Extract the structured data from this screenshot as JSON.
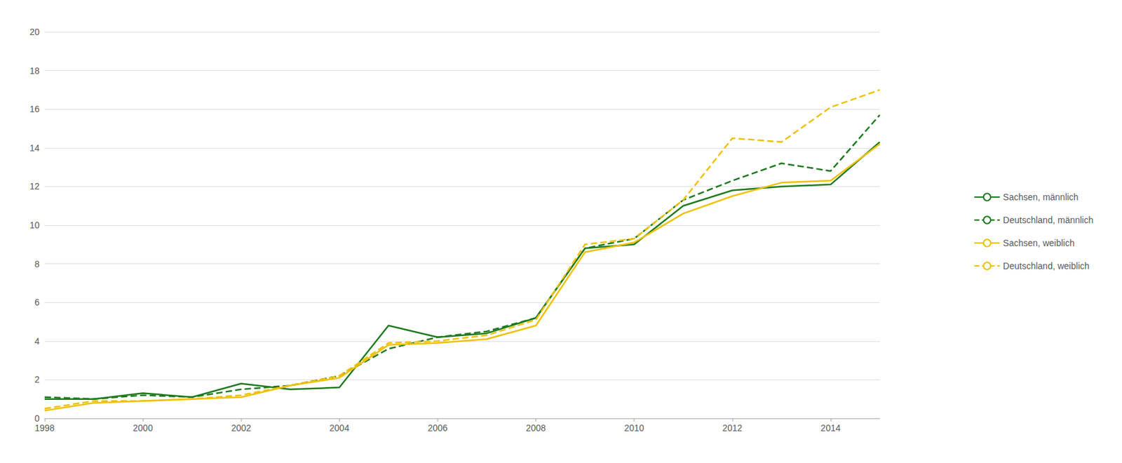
{
  "chart_data": {
    "type": "line",
    "x": [
      1998,
      1999,
      2000,
      2001,
      2002,
      2003,
      2004,
      2005,
      2006,
      2007,
      2008,
      2009,
      2010,
      2011,
      2012,
      2013,
      2014,
      2015
    ],
    "series": [
      {
        "name": "Sachsen, männlich",
        "color": "#1e7a1e",
        "line_style": "solid",
        "values": [
          1.0,
          1.0,
          1.3,
          1.1,
          1.8,
          1.5,
          1.6,
          4.8,
          4.2,
          4.4,
          5.2,
          8.8,
          9.0,
          11.0,
          11.8,
          12.0,
          12.1,
          14.3
        ]
      },
      {
        "name": "Deutschland, männlich",
        "color": "#1e7a1e",
        "line_style": "dashed",
        "values": [
          1.1,
          1.0,
          1.2,
          1.1,
          1.5,
          1.7,
          2.2,
          3.6,
          4.2,
          4.5,
          5.2,
          8.8,
          9.3,
          11.3,
          12.3,
          13.2,
          12.8,
          15.7
        ]
      },
      {
        "name": "Sachsen, weiblich",
        "color": "#f0c000",
        "line_style": "solid",
        "values": [
          0.4,
          0.8,
          0.9,
          1.0,
          1.1,
          1.7,
          2.1,
          3.8,
          3.9,
          4.1,
          4.8,
          8.6,
          9.1,
          10.6,
          11.5,
          12.2,
          12.3,
          14.2
        ]
      },
      {
        "name": "Deutschland, weiblich",
        "color": "#f0c000",
        "line_style": "dashed",
        "values": [
          0.5,
          0.9,
          0.9,
          1.0,
          1.2,
          1.7,
          2.2,
          3.9,
          4.0,
          4.3,
          5.1,
          9.0,
          9.3,
          11.3,
          14.5,
          14.3,
          16.1,
          17.0
        ]
      }
    ],
    "xlim": [
      1998,
      2015
    ],
    "xticks": [
      1998,
      2000,
      2002,
      2004,
      2006,
      2008,
      2010,
      2012,
      2014
    ],
    "ylim": [
      0,
      20
    ],
    "yticks": [
      0,
      2,
      4,
      6,
      8,
      10,
      12,
      14,
      16,
      18,
      20
    ],
    "grid": true,
    "legend": "right"
  }
}
